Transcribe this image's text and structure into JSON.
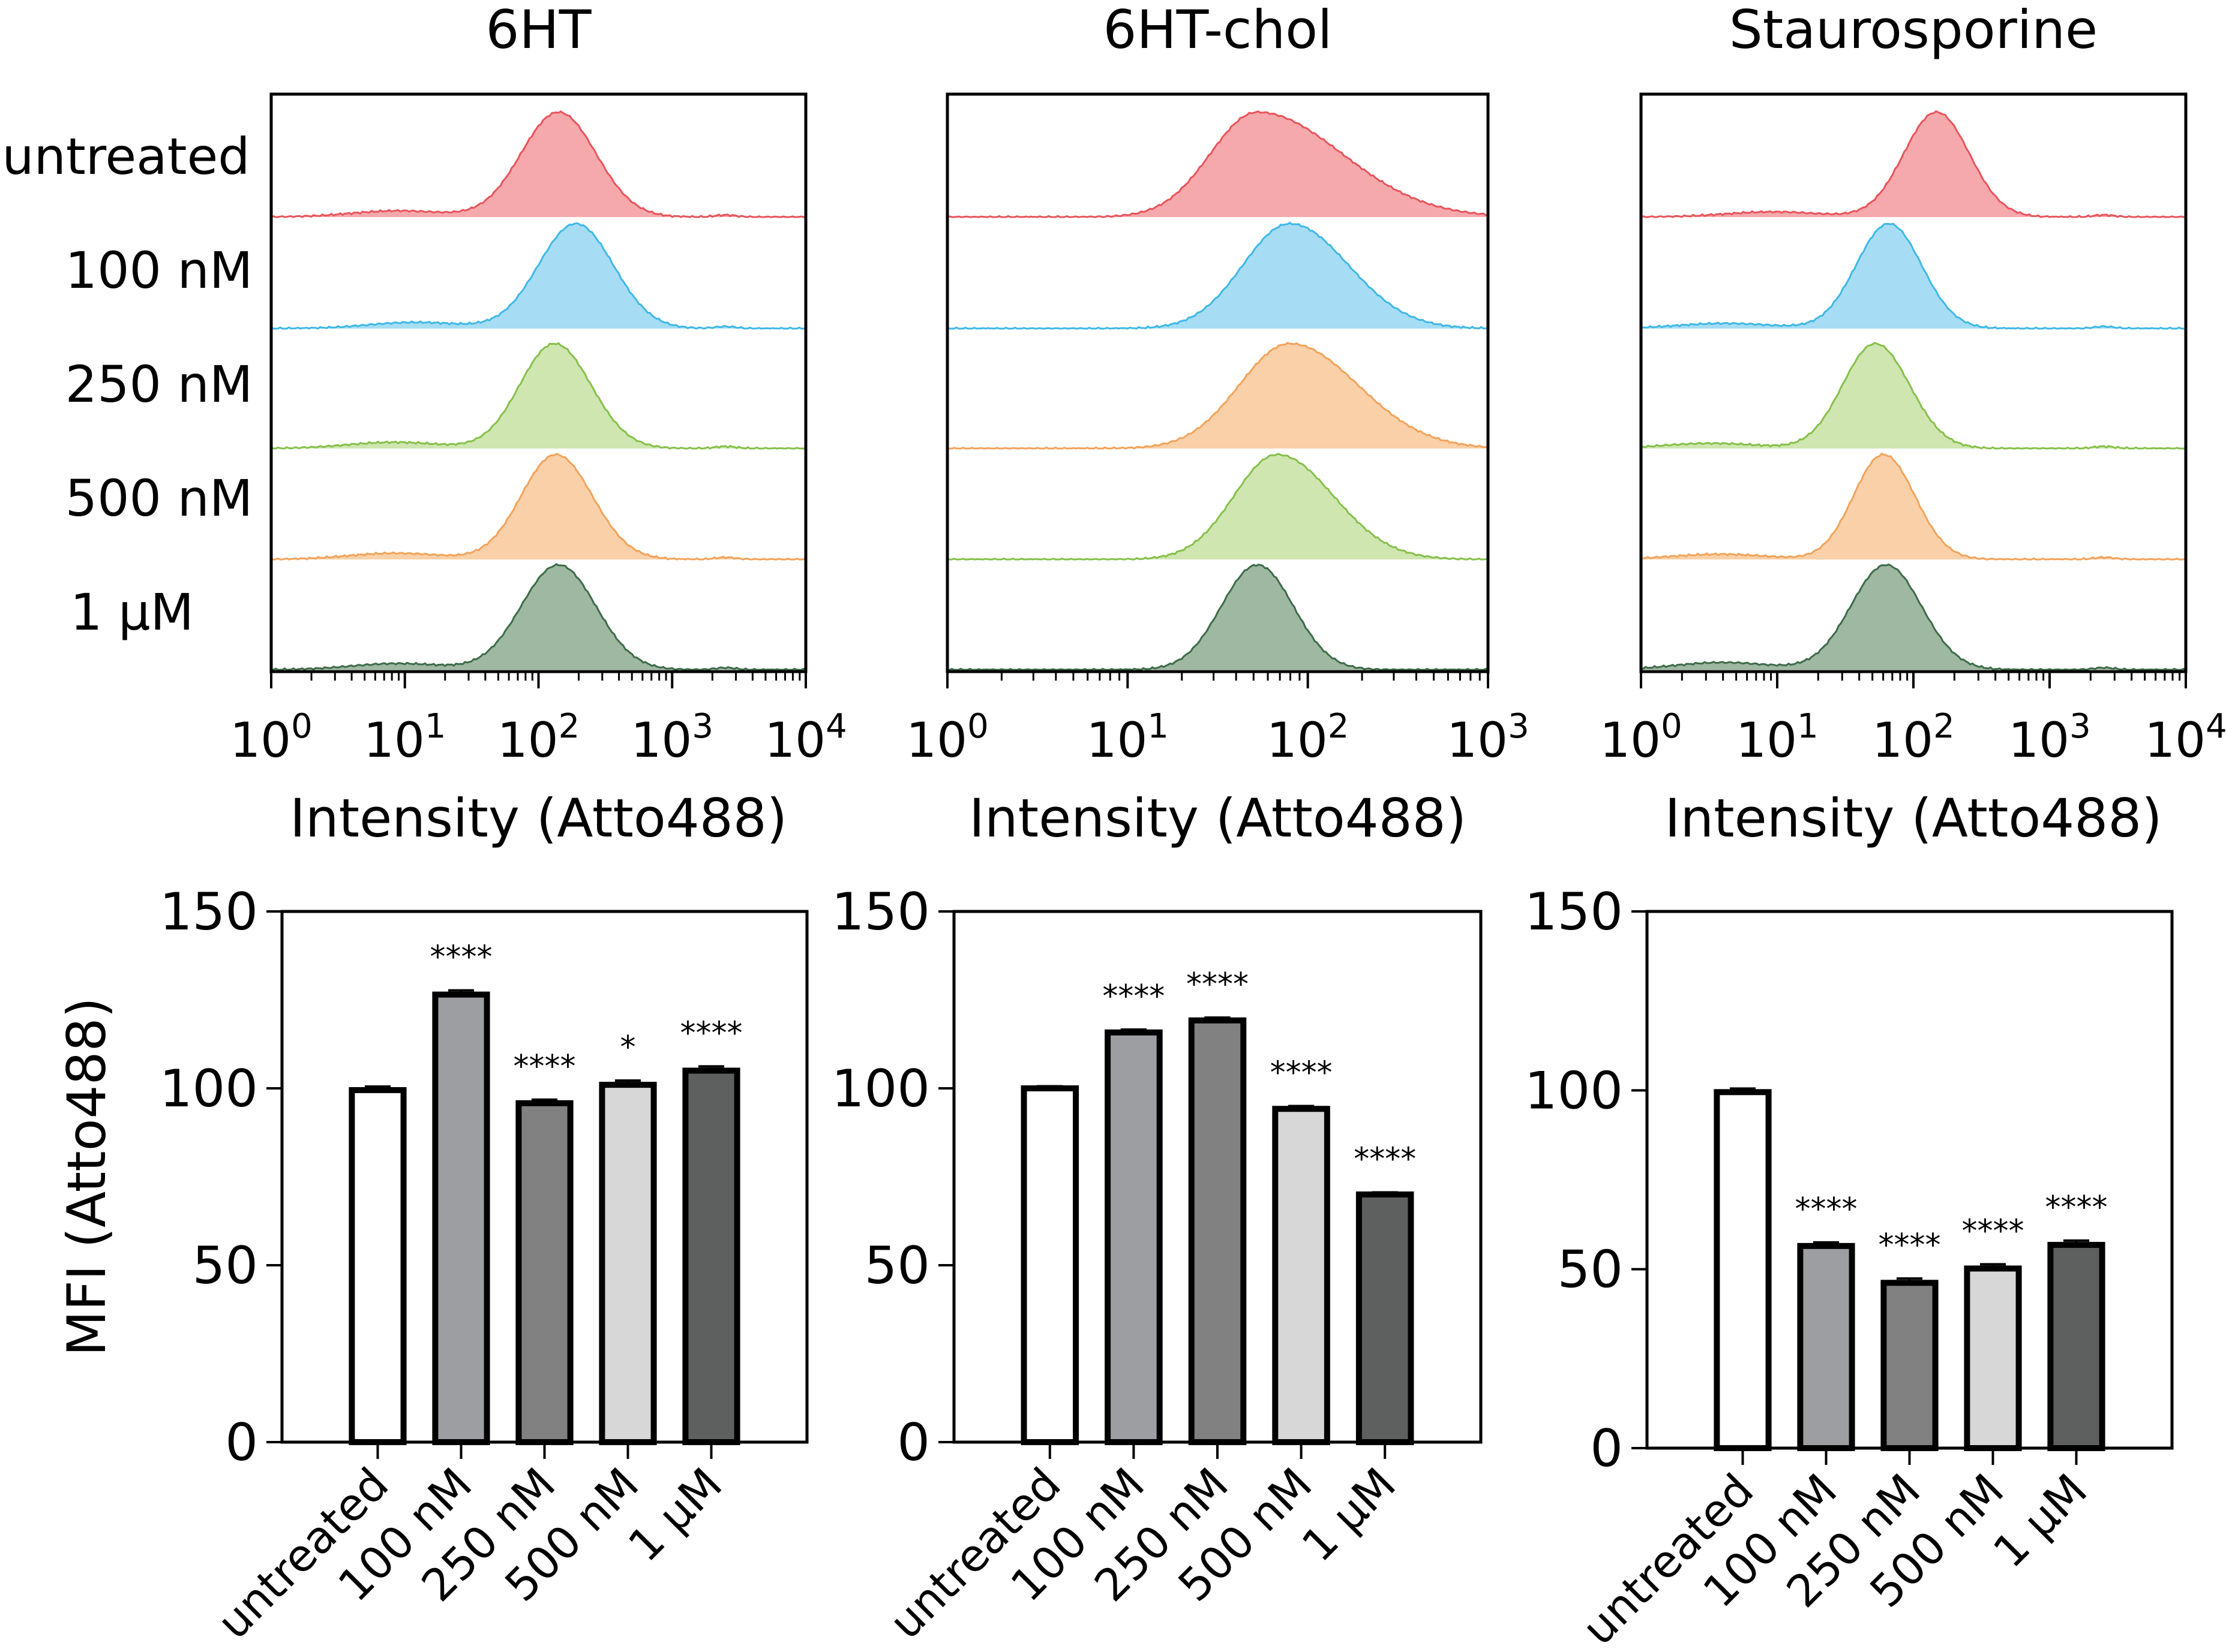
{
  "chart_data": [
    {
      "type": "histogram",
      "title": "6HT",
      "xlabel": "Intensity (Atto488)",
      "xscale": "log",
      "xlim_exp": [
        0,
        4
      ],
      "tick_base": "10",
      "tick_exponents": [
        "0",
        "1",
        "2",
        "3",
        "4"
      ],
      "row_labels": [
        "untreated",
        "100 nM",
        "250 nM",
        "500 nM",
        "1 μM"
      ],
      "rows": [
        {
          "label": "untreated",
          "color": "#e8545c",
          "fill": "#f6a9ad",
          "peak_log": 2.15,
          "width": 0.28,
          "skew": 1.0,
          "spread": 0.06
        },
        {
          "label": "100 nM",
          "color": "#3fb8e6",
          "fill": "#a6ddf4",
          "peak_log": 2.28,
          "width": 0.28,
          "skew": 1.0,
          "spread": 0.06
        },
        {
          "label": "250 nM",
          "color": "#86c04a",
          "fill": "#cfe6b1",
          "peak_log": 2.12,
          "width": 0.26,
          "skew": 1.05,
          "spread": 0.06
        },
        {
          "label": "500 nM",
          "color": "#f2a35a",
          "fill": "#f9d0a8",
          "peak_log": 2.13,
          "width": 0.26,
          "skew": 1.05,
          "spread": 0.06
        },
        {
          "label": "1 μM",
          "color": "#3d6b48",
          "fill": "#9fb8a2",
          "peak_log": 2.15,
          "width": 0.28,
          "skew": 1.0,
          "spread": 0.06
        }
      ]
    },
    {
      "type": "histogram",
      "title": "6HT-chol",
      "xlabel": "Intensity (Atto488)",
      "xscale": "log",
      "xlim_exp": [
        0,
        3
      ],
      "tick_base": "10",
      "tick_exponents": [
        "0",
        "1",
        "2",
        "3"
      ],
      "row_labels": [],
      "rows": [
        {
          "label": "untreated",
          "color": "#e8545c",
          "fill": "#f6a9ad",
          "peak_log": 1.72,
          "width": 0.26,
          "skew": 1.8,
          "spread": 0.0
        },
        {
          "label": "100 nM",
          "color": "#3fb8e6",
          "fill": "#a6ddf4",
          "peak_log": 1.9,
          "width": 0.26,
          "skew": 1.25,
          "spread": 0.0
        },
        {
          "label": "250 nM",
          "color": "#f2a35a",
          "fill": "#f9d0a8",
          "peak_log": 1.9,
          "width": 0.28,
          "skew": 1.35,
          "spread": 0.0
        },
        {
          "label": "500 nM",
          "color": "#86c04a",
          "fill": "#cfe6b1",
          "peak_log": 1.83,
          "width": 0.24,
          "skew": 1.3,
          "spread": 0.0
        },
        {
          "label": "1 μM",
          "color": "#3d6b48",
          "fill": "#9fb8a2",
          "peak_log": 1.72,
          "width": 0.2,
          "skew": 1.0,
          "spread": 0.0
        }
      ]
    },
    {
      "type": "histogram",
      "title": "Staurosporine",
      "xlabel": "Intensity (Atto488)",
      "xscale": "log",
      "xlim_exp": [
        0,
        4
      ],
      "tick_base": "10",
      "tick_exponents": [
        "0",
        "1",
        "2",
        "3",
        "4"
      ],
      "row_labels": [],
      "rows": [
        {
          "label": "untreated",
          "color": "#e8545c",
          "fill": "#f6a9ad",
          "peak_log": 2.17,
          "width": 0.24,
          "skew": 1.0,
          "spread": 0.05
        },
        {
          "label": "100 nM",
          "color": "#3fb8e6",
          "fill": "#a6ddf4",
          "peak_log": 1.82,
          "width": 0.24,
          "skew": 1.0,
          "spread": 0.05
        },
        {
          "label": "250 nM",
          "color": "#86c04a",
          "fill": "#cfe6b1",
          "peak_log": 1.72,
          "width": 0.24,
          "skew": 1.05,
          "spread": 0.05
        },
        {
          "label": "500 nM",
          "color": "#f2a35a",
          "fill": "#f9d0a8",
          "peak_log": 1.78,
          "width": 0.22,
          "skew": 1.05,
          "spread": 0.05
        },
        {
          "label": "1 μM",
          "color": "#3d6b48",
          "fill": "#9fb8a2",
          "peak_log": 1.8,
          "width": 0.26,
          "skew": 1.0,
          "spread": 0.07
        }
      ]
    },
    {
      "type": "bar",
      "ylabel": "MFI (Atto488)",
      "ylim": [
        0,
        150
      ],
      "yticks": [
        0,
        50,
        100,
        150
      ],
      "categories": [
        "untreated",
        "100 nM",
        "250 nM",
        "500 nM",
        "1 μM"
      ],
      "values": [
        99.5,
        126.5,
        95.8,
        101,
        105
      ],
      "errors": [
        1.0,
        1.2,
        1.0,
        1.2,
        1.2
      ],
      "significance": [
        "",
        "****",
        "****",
        "*",
        "****"
      ],
      "fills": [
        "#ffffff",
        "#9d9ea2",
        "#808180",
        "#d6d7d6",
        "#5e5f5f"
      ]
    },
    {
      "type": "bar",
      "ylabel": "",
      "ylim": [
        0,
        150
      ],
      "yticks": [
        0,
        50,
        100,
        150
      ],
      "categories": [
        "untreated",
        "100 nM",
        "250 nM",
        "500 nM",
        "1 μM"
      ],
      "values": [
        100,
        115.8,
        119.2,
        94.2,
        70
      ],
      "errors": [
        0.6,
        0.8,
        0.8,
        0.8,
        0.6
      ],
      "significance": [
        "",
        "****",
        "****",
        "****",
        "****"
      ],
      "fills": [
        "#ffffff",
        "#9d9ea2",
        "#808180",
        "#d6d7d6",
        "#5e5f5f"
      ]
    },
    {
      "type": "bar",
      "ylabel": "",
      "ylim": [
        0,
        150
      ],
      "yticks": [
        0,
        50,
        100,
        150
      ],
      "categories": [
        "untreated",
        "100 nM",
        "250 nM",
        "500 nM",
        "1 μM"
      ],
      "values": [
        99.5,
        56.5,
        46.2,
        50.2,
        56.8
      ],
      "errors": [
        1.0,
        1.0,
        1.2,
        1.2,
        1.2
      ],
      "significance": [
        "",
        "****",
        "****",
        "****",
        "****"
      ],
      "fills": [
        "#ffffff",
        "#9d9ea2",
        "#808180",
        "#d6d7d6",
        "#5e5f5f"
      ]
    }
  ]
}
